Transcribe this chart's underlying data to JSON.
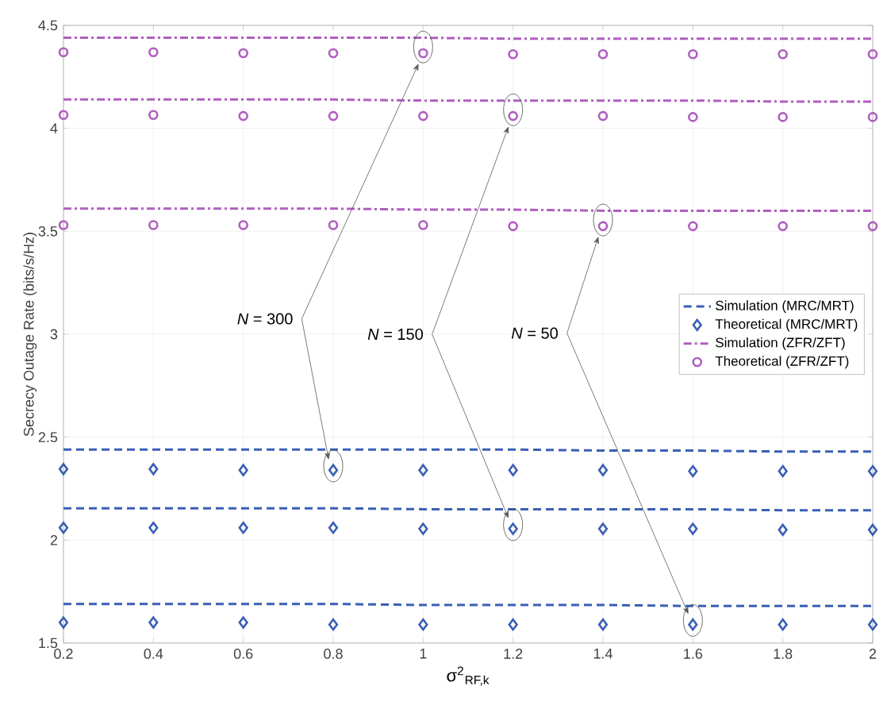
{
  "chart_data": {
    "type": "line",
    "xlabel": "σ$^{2}$$_{RF,k}$",
    "ylabel": "Secrecy Outage Rate (bits/s/Hz)",
    "x": [
      0.2,
      0.4,
      0.6,
      0.8,
      1,
      1.2,
      1.4,
      1.6,
      1.8,
      2
    ],
    "xlim": [
      0.2,
      2
    ],
    "xticks": [
      0.2,
      0.4,
      0.6,
      0.8,
      1,
      1.2,
      1.4,
      1.6,
      1.8,
      2
    ],
    "ylim": [
      1.5,
      4.5
    ],
    "yticks": [
      1.5,
      2,
      2.5,
      3,
      3.5,
      4,
      4.5
    ],
    "grid": true,
    "legend": "right",
    "series": [
      {
        "name": "Simulation (MRC/MRT)",
        "line_style": "dashed",
        "marker": "none",
        "color": "#3a5fb5",
        "values": [
          2.44,
          2.44,
          2.44,
          2.44,
          2.44,
          2.44,
          2.435,
          2.435,
          2.43,
          2.43
        ]
      },
      {
        "line_style": "dashed",
        "marker": "none",
        "color": "#3a5fb5",
        "values": [
          2.155,
          2.155,
          2.155,
          2.155,
          2.15,
          2.15,
          2.15,
          2.15,
          2.145,
          2.145
        ]
      },
      {
        "line_style": "dashed",
        "marker": "none",
        "color": "#3a5fb5",
        "values": [
          1.69,
          1.69,
          1.69,
          1.69,
          1.685,
          1.685,
          1.685,
          1.68,
          1.68,
          1.68
        ]
      },
      {
        "name": "Theoretical (MRC/MRT)",
        "type": "scatter",
        "marker": "diamond",
        "color": "#3a5fb5",
        "values": [
          2.345,
          2.345,
          2.34,
          2.34,
          2.34,
          2.34,
          2.34,
          2.335,
          2.335,
          2.335
        ]
      },
      {
        "type": "scatter",
        "marker": "diamond",
        "color": "#3a5fb5",
        "values": [
          2.06,
          2.06,
          2.06,
          2.06,
          2.055,
          2.055,
          2.055,
          2.055,
          2.05,
          2.05
        ]
      },
      {
        "type": "scatter",
        "marker": "diamond",
        "color": "#3a5fb5",
        "values": [
          1.6,
          1.6,
          1.6,
          1.59,
          1.59,
          1.59,
          1.59,
          1.59,
          1.59,
          1.59
        ]
      },
      {
        "name": "Simulation (ZFR/ZFT)",
        "line_style": "dashdot",
        "marker": "none",
        "color": "#b05fbf",
        "values": [
          4.44,
          4.44,
          4.44,
          4.44,
          4.44,
          4.435,
          4.435,
          4.435,
          4.435,
          4.435
        ]
      },
      {
        "line_style": "dashdot",
        "marker": "none",
        "color": "#b05fbf",
        "values": [
          4.14,
          4.14,
          4.14,
          4.14,
          4.135,
          4.135,
          4.135,
          4.135,
          4.13,
          4.13
        ]
      },
      {
        "line_style": "dashdot",
        "marker": "none",
        "color": "#b05fbf",
        "values": [
          3.61,
          3.61,
          3.61,
          3.61,
          3.605,
          3.605,
          3.6,
          3.6,
          3.6,
          3.6
        ]
      },
      {
        "name": "Theoretical (ZFR/ZFT)",
        "type": "scatter",
        "marker": "circle",
        "color": "#b05fbf",
        "values": [
          4.37,
          4.37,
          4.365,
          4.365,
          4.365,
          4.36,
          4.36,
          4.36,
          4.36,
          4.36
        ]
      },
      {
        "type": "scatter",
        "marker": "circle",
        "color": "#b05fbf",
        "values": [
          4.065,
          4.065,
          4.06,
          4.06,
          4.06,
          4.06,
          4.06,
          4.055,
          4.055,
          4.055
        ]
      },
      {
        "type": "scatter",
        "marker": "circle",
        "color": "#b05fbf",
        "values": [
          3.53,
          3.53,
          3.53,
          3.53,
          3.53,
          3.525,
          3.525,
          3.525,
          3.525,
          3.525
        ]
      }
    ],
    "annotations": [
      "*N* = 300",
      "*N* = 150",
      "*N* = 50"
    ]
  }
}
